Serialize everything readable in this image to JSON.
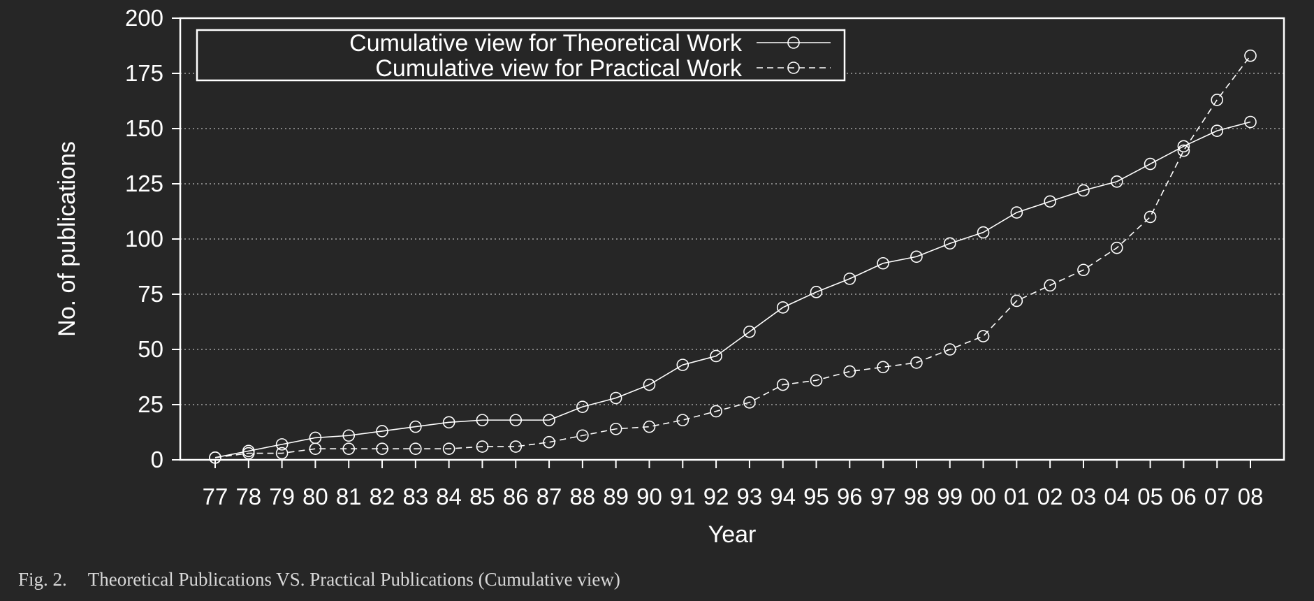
{
  "chart_data": {
    "type": "line",
    "title": "",
    "xlabel": "Year",
    "ylabel": "No. of publications",
    "categories": [
      "77",
      "78",
      "79",
      "80",
      "81",
      "82",
      "83",
      "84",
      "85",
      "86",
      "87",
      "88",
      "89",
      "90",
      "91",
      "92",
      "93",
      "94",
      "95",
      "96",
      "97",
      "98",
      "99",
      "00",
      "01",
      "02",
      "03",
      "04",
      "05",
      "06",
      "07",
      "08"
    ],
    "ylim": [
      0,
      200
    ],
    "yticks": [
      0,
      25,
      50,
      75,
      100,
      125,
      150,
      175,
      200
    ],
    "grid": "horizontal-dotted",
    "legend_position": "top-left",
    "series": [
      {
        "name": "Cumulative view for Theoretical Work",
        "line_style": "solid",
        "marker": "circle",
        "values": [
          1,
          4,
          7,
          10,
          11,
          13,
          15,
          17,
          18,
          18,
          18,
          24,
          28,
          34,
          43,
          47,
          58,
          69,
          76,
          82,
          89,
          92,
          98,
          103,
          112,
          117,
          122,
          126,
          134,
          142,
          149,
          153
        ]
      },
      {
        "name": "Cumulative view for Practical Work",
        "line_style": "dashed",
        "marker": "circle",
        "values": [
          1,
          3,
          3,
          5,
          5,
          5,
          5,
          5,
          6,
          6,
          8,
          11,
          14,
          15,
          18,
          22,
          26,
          34,
          36,
          40,
          42,
          44,
          50,
          56,
          72,
          79,
          86,
          96,
          110,
          140,
          163,
          183
        ]
      }
    ]
  },
  "caption": {
    "figure_label": "Fig. 2.",
    "text": "Theoretical Publications VS. Practical Publications (Cumulative view)"
  },
  "colors": {
    "background": "#262626",
    "foreground": "#ffffff",
    "grid": "#bdbdbd"
  }
}
